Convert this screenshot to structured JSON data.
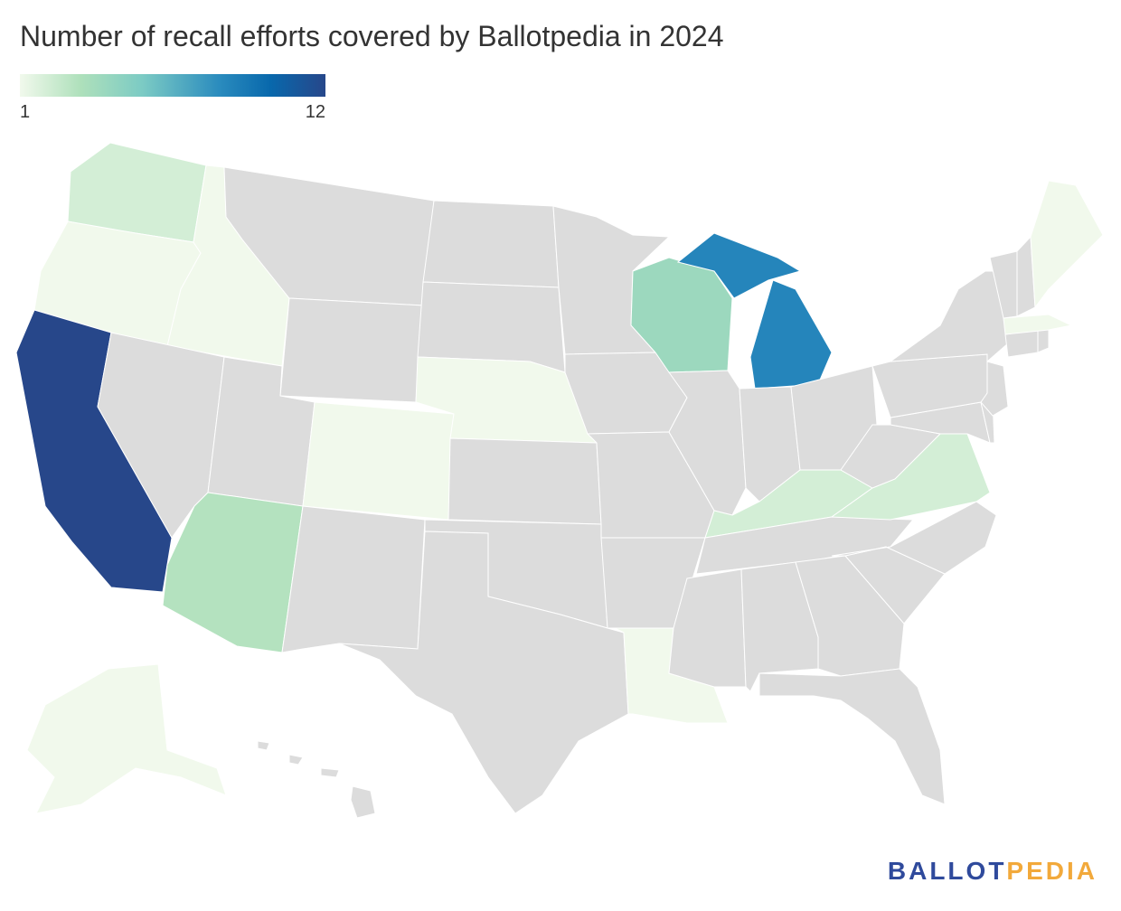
{
  "title": "Number of recall efforts covered by Ballotpedia in 2024",
  "legend": {
    "min_label": "1",
    "max_label": "12",
    "min": 1,
    "max": 12,
    "colors": [
      "#f1f9ec",
      "#aee0bb",
      "#7ccbc4",
      "#2b8cbe",
      "#0868ac",
      "#27478a"
    ]
  },
  "no_data_color": "#dcdcdc",
  "states": [
    {
      "name": "Washington",
      "value": 2
    },
    {
      "name": "Oregon",
      "value": 1
    },
    {
      "name": "California",
      "value": 12
    },
    {
      "name": "Idaho",
      "value": 1
    },
    {
      "name": "Nevada",
      "value": null
    },
    {
      "name": "Montana",
      "value": null
    },
    {
      "name": "Wyoming",
      "value": null
    },
    {
      "name": "Utah",
      "value": null
    },
    {
      "name": "Arizona",
      "value": 3
    },
    {
      "name": "Colorado",
      "value": 1
    },
    {
      "name": "New Mexico",
      "value": null
    },
    {
      "name": "North Dakota",
      "value": null
    },
    {
      "name": "South Dakota",
      "value": null
    },
    {
      "name": "Nebraska",
      "value": 1
    },
    {
      "name": "Kansas",
      "value": null
    },
    {
      "name": "Oklahoma",
      "value": null
    },
    {
      "name": "Texas",
      "value": null
    },
    {
      "name": "Minnesota",
      "value": null
    },
    {
      "name": "Iowa",
      "value": null
    },
    {
      "name": "Missouri",
      "value": null
    },
    {
      "name": "Arkansas",
      "value": null
    },
    {
      "name": "Louisiana",
      "value": 1
    },
    {
      "name": "Wisconsin",
      "value": 4
    },
    {
      "name": "Illinois",
      "value": null
    },
    {
      "name": "Michigan",
      "value": 8
    },
    {
      "name": "Indiana",
      "value": null
    },
    {
      "name": "Ohio",
      "value": null
    },
    {
      "name": "Kentucky",
      "value": 2
    },
    {
      "name": "Tennessee",
      "value": null
    },
    {
      "name": "Mississippi",
      "value": null
    },
    {
      "name": "Alabama",
      "value": null
    },
    {
      "name": "Georgia",
      "value": null
    },
    {
      "name": "Florida",
      "value": null
    },
    {
      "name": "South Carolina",
      "value": null
    },
    {
      "name": "North Carolina",
      "value": null
    },
    {
      "name": "Virginia",
      "value": 2
    },
    {
      "name": "West Virginia",
      "value": null
    },
    {
      "name": "Maryland",
      "value": null
    },
    {
      "name": "Delaware",
      "value": null
    },
    {
      "name": "New Jersey",
      "value": null
    },
    {
      "name": "Pennsylvania",
      "value": null
    },
    {
      "name": "New York",
      "value": null
    },
    {
      "name": "Connecticut",
      "value": null
    },
    {
      "name": "Rhode Island",
      "value": null
    },
    {
      "name": "Massachusetts",
      "value": 1
    },
    {
      "name": "Vermont",
      "value": null
    },
    {
      "name": "New Hampshire",
      "value": null
    },
    {
      "name": "Maine",
      "value": 1
    },
    {
      "name": "Alaska",
      "value": 1
    },
    {
      "name": "Hawaii",
      "value": null
    }
  ],
  "logo": {
    "part1": "BALLOT",
    "part2": "PEDIA"
  }
}
